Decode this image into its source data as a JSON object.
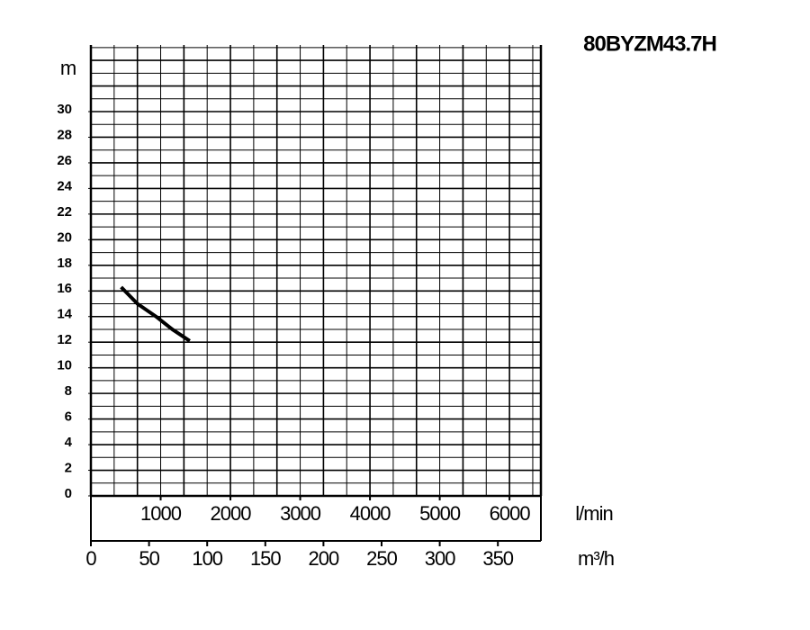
{
  "chart_data": {
    "type": "line",
    "title": "80BYZM43.7H",
    "y_label": "m",
    "x_label": "m³/h",
    "x2_label": "l/min",
    "x": [
      26,
      40,
      56,
      70,
      85
    ],
    "series": [
      {
        "name": "80BYZM43.7H",
        "color": "#000000",
        "values": [
          16.3,
          15.0,
          14.0,
          13.0,
          12.1
        ]
      }
    ],
    "xlim": [
      0,
      387
    ],
    "xticks": [
      0,
      50,
      100,
      150,
      200,
      250,
      300,
      350
    ],
    "x2lim": [
      0,
      6450
    ],
    "x2ticks": [
      1000,
      2000,
      3000,
      4000,
      5000,
      6000
    ],
    "ylim": [
      0,
      35.2
    ],
    "yticks": [
      0,
      2,
      4,
      6,
      8,
      10,
      12,
      14,
      16,
      18,
      20,
      22,
      24,
      26,
      28,
      30
    ],
    "grid": true,
    "grid_step_x": 20,
    "grid_step_y": 1
  }
}
